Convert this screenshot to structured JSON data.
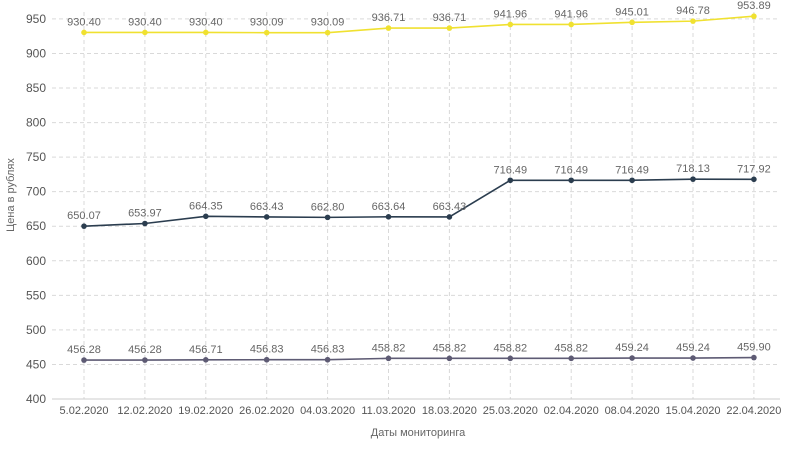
{
  "chart_data": {
    "type": "line",
    "title": "",
    "xlabel": "Даты мониторинга",
    "ylabel": "Цена в рублях",
    "ylim": [
      400,
      960
    ],
    "yticks": [
      400,
      450,
      500,
      550,
      600,
      650,
      700,
      750,
      800,
      850,
      900,
      950
    ],
    "grid": true,
    "x": [
      "5.02.2020",
      "12.02.2020",
      "19.02.2020",
      "26.02.2020",
      "04.03.2020",
      "11.03.2020",
      "18.03.2020",
      "25.03.2020",
      "02.04.2020",
      "08.04.2020",
      "15.04.2020",
      "22.04.2020"
    ],
    "series": [
      {
        "color": "#f0e130",
        "values": [
          930.4,
          930.4,
          930.4,
          930.09,
          930.09,
          936.71,
          936.71,
          941.96,
          941.96,
          945.01,
          946.78,
          953.89
        ],
        "labels": [
          "930.40",
          "930.40",
          "930.40",
          "930.09",
          "930.09",
          "936.71",
          "936.71",
          "941.96",
          "941.96",
          "945.01",
          "946.78",
          "953.89"
        ]
      },
      {
        "color": "#2b3d4f",
        "values": [
          650.07,
          653.97,
          664.35,
          663.43,
          662.8,
          663.64,
          663.43,
          716.49,
          716.49,
          716.49,
          718.13,
          717.92
        ],
        "labels": [
          "650.07",
          "653.97",
          "664.35",
          "663.43",
          "662.80",
          "663.64",
          "663.43",
          "716.49",
          "716.49",
          "716.49",
          "718.13",
          "717.92"
        ]
      },
      {
        "color": "#5e5b74",
        "values": [
          456.28,
          456.28,
          456.71,
          456.83,
          456.83,
          458.82,
          458.82,
          458.82,
          458.82,
          459.24,
          459.24,
          459.9
        ],
        "labels": [
          "456.28",
          "456.28",
          "456.71",
          "456.83",
          "456.83",
          "458.82",
          "458.82",
          "458.82",
          "458.82",
          "459.24",
          "459.24",
          "459.90"
        ]
      }
    ]
  }
}
